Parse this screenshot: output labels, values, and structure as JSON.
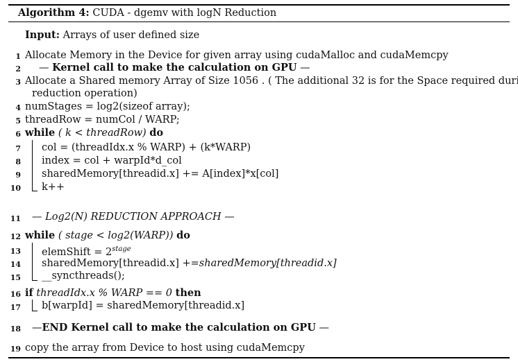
{
  "title": {
    "label": "Algorithm 4:",
    "text": "CUDA - dgemv with logN Reduction"
  },
  "input": {
    "label": "Input:",
    "text": "Arrays of user defined size"
  },
  "lines": {
    "l1": {
      "num": "1",
      "text": "Allocate Memory in the Device for given array using cudaMalloc and cudaMemcpy"
    },
    "l2": {
      "num": "2",
      "pre": "—",
      "bold": "Kernel call to make the calculation on GPU",
      "post": "—"
    },
    "l3": {
      "num": "3",
      "text": "Allocate a Shared memory Array of Size 1056 . ( The additional 32 is for the Space required during",
      "cont": "reduction operation)"
    },
    "l4": {
      "num": "4",
      "text": "numStages = log2(sizeof array);"
    },
    "l5": {
      "num": "5",
      "text": "threadRow = numCol / WARP;"
    },
    "l6": {
      "num": "6",
      "kw1": "while",
      "cond": "( k < threadRow)",
      "kw2": "do"
    },
    "l7": {
      "num": "7",
      "text": "col = (threadIdx.x % WARP) + (k*WARP)"
    },
    "l8": {
      "num": "8",
      "text": "index = col + warpId*d_col"
    },
    "l9": {
      "num": "9",
      "text": "sharedMemory[threadid.x] += A[index]*x[col]"
    },
    "l10": {
      "num": "10",
      "text": "k++"
    },
    "l11": {
      "num": "11",
      "pre": "—",
      "ital": "Log2(N) REDUCTION APPROACH",
      "post": "—"
    },
    "l12": {
      "num": "12",
      "kw1": "while",
      "cond": "( stage < log2(WARP))",
      "kw2": "do"
    },
    "l13": {
      "num": "13",
      "text": "elemShift = 2",
      "sup": "stage"
    },
    "l14": {
      "num": "14",
      "text": "sharedMemory[threadid.x] +=",
      "ital": "sharedMemory[threadid.x]"
    },
    "l15": {
      "num": "15",
      "text": "__syncthreads();"
    },
    "l16": {
      "num": "16",
      "kw1": "if",
      "cond": "threadIdx.x % WARP == 0",
      "kw2": "then"
    },
    "l17": {
      "num": "17",
      "text": "b[warpId] = sharedMemory[threadid.x]"
    },
    "l18": {
      "num": "18",
      "pre": "—",
      "bold": "END Kernel call to make the calculation on GPU",
      "post": "—"
    },
    "l19": {
      "num": "19",
      "text": "copy the array from Device to host using cudaMemcpy"
    }
  }
}
